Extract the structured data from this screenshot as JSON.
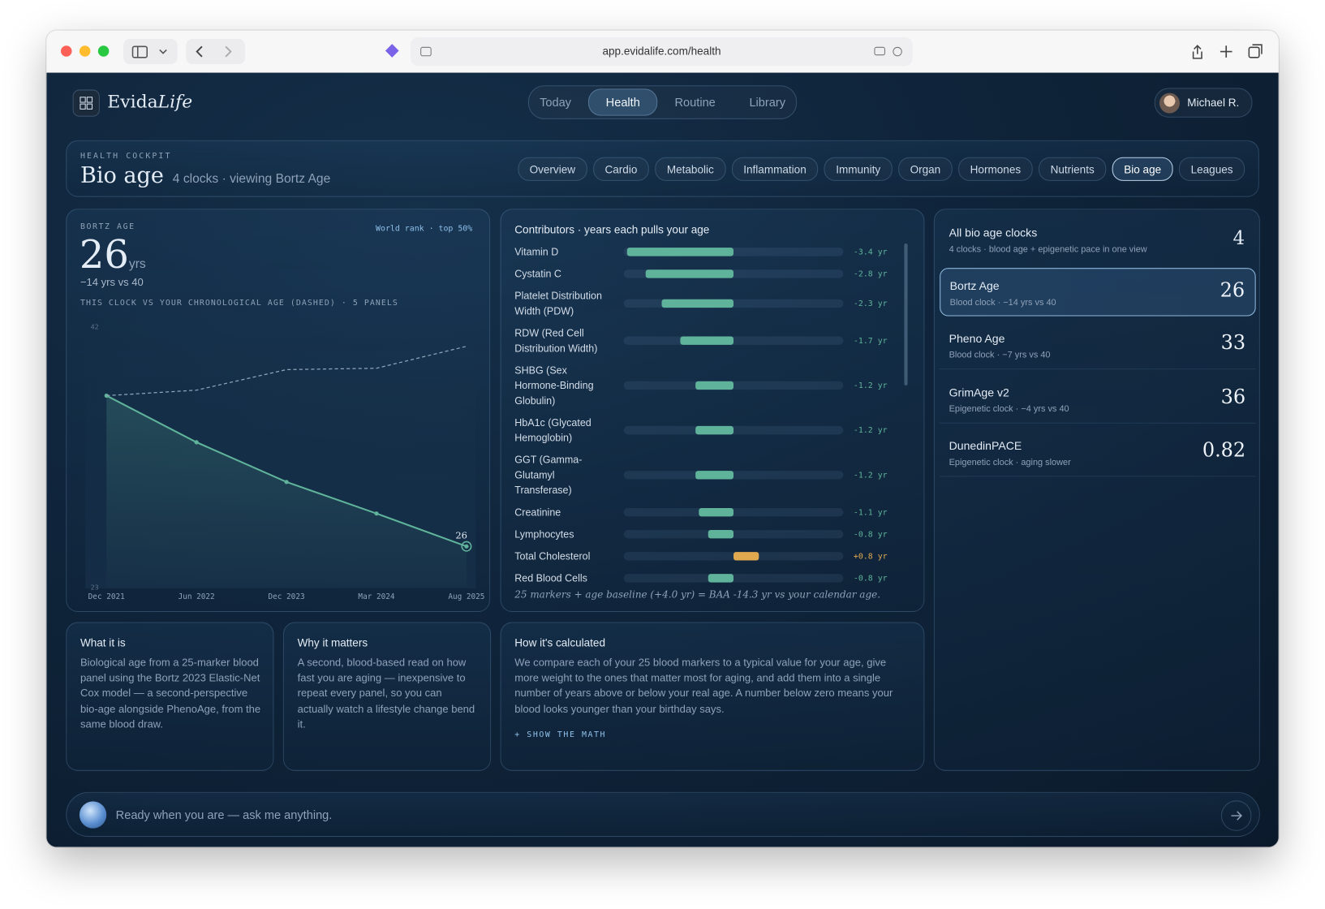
{
  "browser": {
    "url": "app.evidalife.com/health"
  },
  "app": {
    "brand": "Evida",
    "brand_italic": "Life",
    "nav": [
      "Today",
      "Health",
      "Routine",
      "Library"
    ],
    "user": "Michael R."
  },
  "header": {
    "eyebrow": "HEALTH COCKPIT",
    "title": "Bio age",
    "subtitle": "4 clocks · viewing Bortz Age",
    "tabs": [
      "Overview",
      "Cardio",
      "Metabolic",
      "Inflammation",
      "Immunity",
      "Organ",
      "Hormones",
      "Nutrients",
      "Bio age",
      "Leagues"
    ]
  },
  "clock_panel": {
    "eyebrow": "BORTZ AGE",
    "rank": "World rank · top 50%",
    "age": 26,
    "unit": "yrs",
    "delta": "−14 yrs vs 40",
    "caption": "THIS CLOCK VS YOUR CHRONOLOGICAL AGE (DASHED) · 5 PANELS"
  },
  "chart_data": [
    {
      "type": "line",
      "x": [
        "Dec 2021",
        "Jun 2022",
        "Dec 2023",
        "Mar 2024",
        "Aug 2025"
      ],
      "series": [
        {
          "color": "#5fb39a",
          "values": [
            37,
            33.6,
            30.7,
            28.4,
            26
          ],
          "fill": true
        },
        {
          "color": "#8ea4bb",
          "values": [
            37,
            37.4,
            38.9,
            39,
            40.6
          ],
          "dash": true
        }
      ],
      "ylim": [
        23,
        42
      ],
      "yticks": [
        23,
        42
      ]
    },
    {
      "type": "bar",
      "orientation": "horizontal",
      "title": "Contributors · years each pulls your age",
      "categories": [
        "Vitamin D",
        "Cystatin C",
        "Platelet Distribution Width (PDW)",
        "RDW (Red Cell Distribution Width)",
        "SHBG (Sex Hormone-Binding Globulin)",
        "HbA1c (Glycated Hemoglobin)",
        "GGT (Gamma-Glutamyl Transferase)",
        "Creatinine",
        "Lymphocytes",
        "Total Cholesterol",
        "Red Blood Cells"
      ],
      "values": [
        -3.4,
        -2.8,
        -2.3,
        -1.7,
        -1.2,
        -1.2,
        -1.2,
        -1.1,
        -0.8,
        0.8,
        -0.8
      ],
      "value_labels": [
        "-3.4 yr",
        "-2.8 yr",
        "-2.3 yr",
        "-1.7 yr",
        "-1.2 yr",
        "-1.2 yr",
        "-1.2 yr",
        "-1.1 yr",
        "-0.8 yr",
        "+0.8 yr",
        "-0.8 yr"
      ],
      "color": "#5fb39a",
      "positive_color": "#e0a94f",
      "xlim": [
        -3.5,
        3.5
      ],
      "note": "25 markers + age baseline (+4.0 yr) = BAA -14.3 yr vs your calendar age."
    }
  ],
  "clocks": {
    "title": "All bio age clocks",
    "subtitle": "4 clocks · blood age + epigenetic pace in one view",
    "count": 4,
    "items": [
      {
        "name": "Bortz Age",
        "desc": "Blood clock · −14 yrs vs 40",
        "value": 26
      },
      {
        "name": "Pheno Age",
        "desc": "Blood clock · −7 yrs vs 40",
        "value": 33
      },
      {
        "name": "GrimAge v2",
        "desc": "Epigenetic clock · −4 yrs vs 40",
        "value": 36
      },
      {
        "name": "DunedinPACE",
        "desc": "Epigenetic clock · aging slower",
        "value": 0.82
      }
    ]
  },
  "cards": [
    {
      "title": "What it is",
      "body": "Biological age from a 25-marker blood panel using the Bortz 2023 Elastic-Net Cox model — a second-perspective bio-age alongside PhenoAge, from the same blood draw."
    },
    {
      "title": "Why it matters",
      "body": "A second, blood-based read on how fast you are aging — inexpensive to repeat every panel, so you can actually watch a lifestyle change bend it."
    },
    {
      "title": "How it's calculated",
      "body": "We compare each of your 25 blood markers to a typical value for your age, give more weight to the ones that matter most for aging, and add them into a single number of years above or below your real age. A number below zero means your blood looks younger than your birthday says.",
      "link": "+ SHOW THE MATH"
    }
  ],
  "chat": {
    "placeholder": "Ready when you are — ask me anything."
  }
}
